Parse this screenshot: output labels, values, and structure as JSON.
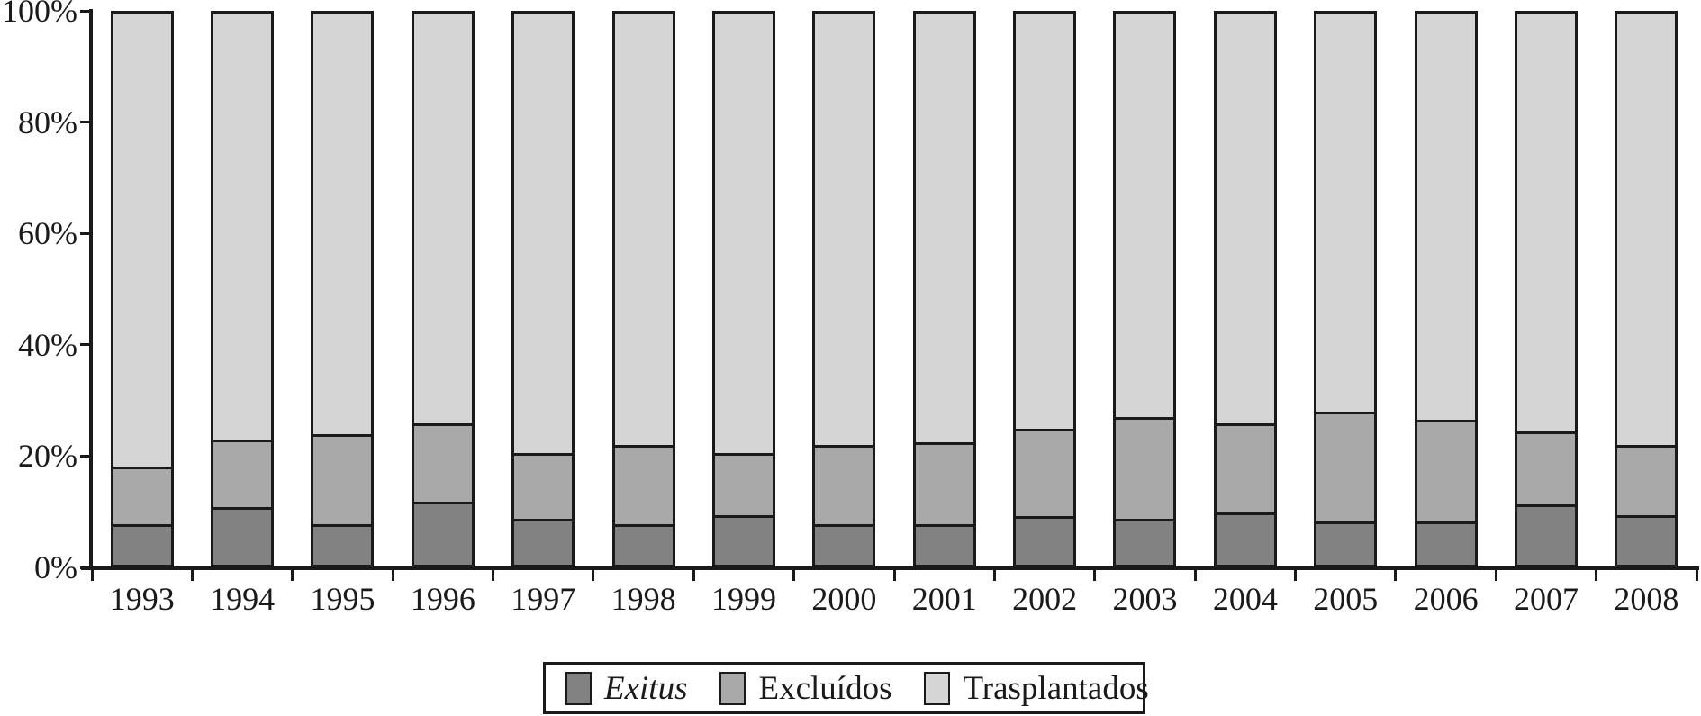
{
  "chart_data": {
    "type": "bar",
    "stacked": true,
    "unit": "percent",
    "title": "",
    "xlabel": "",
    "ylabel": "",
    "categories": [
      "1993",
      "1994",
      "1995",
      "1996",
      "1997",
      "1998",
      "1999",
      "2000",
      "2001",
      "2002",
      "2003",
      "2004",
      "2005",
      "2006",
      "2007",
      "2008"
    ],
    "series": [
      {
        "name": "Exitus",
        "italic": true,
        "color": "#828282",
        "values": [
          7,
          10,
          7,
          11,
          8,
          7,
          8.5,
          7,
          7,
          8.5,
          8,
          9,
          7.5,
          7.5,
          10.5,
          8.5
        ]
      },
      {
        "name": "Excluídos",
        "italic": false,
        "color": "#a9a9a9",
        "values": [
          10,
          12,
          16,
          14,
          11.5,
          14,
          11,
          14,
          14.5,
          15.5,
          18,
          16,
          19.5,
          18,
          13,
          12.5
        ]
      },
      {
        "name": "Trasplantados",
        "italic": false,
        "color": "#d5d5d5",
        "values": [
          83,
          78,
          77,
          75,
          80.5,
          79,
          80.5,
          79,
          78.5,
          76,
          74,
          75,
          73,
          74.5,
          76.5,
          79
        ]
      }
    ],
    "yaxis": {
      "range": [
        0,
        100
      ],
      "ticks": [
        0,
        20,
        40,
        60,
        80,
        100
      ],
      "tick_format": "{v}%"
    },
    "legend": {
      "position": "bottom-center",
      "bordered": true
    },
    "grid": false
  },
  "colors": {
    "axis": "#1a1a1a",
    "segment_border": "#1a1a1a",
    "background": "#ffffff"
  }
}
